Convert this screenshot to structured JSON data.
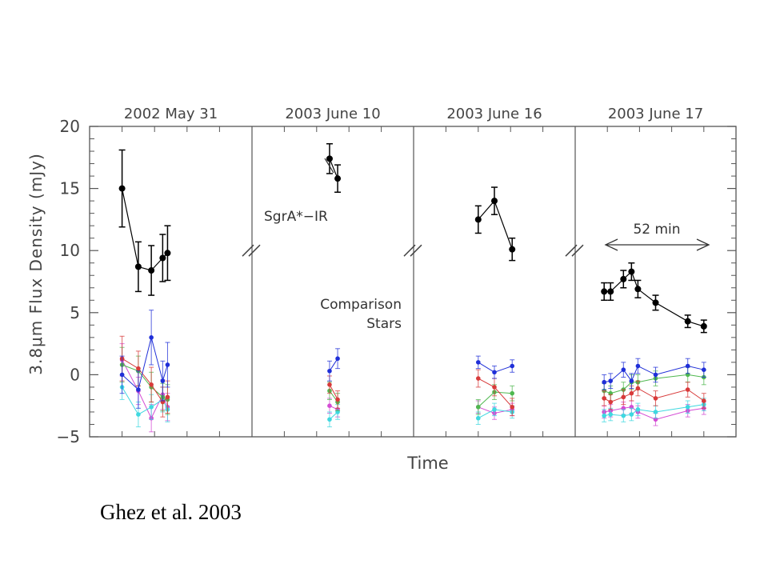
{
  "credit": "Ghez et al. 2003",
  "chart_data": {
    "type": "scatter",
    "title": "",
    "xlabel": "Time",
    "ylabel": "3.8μm Flux Density (mJy)",
    "ylim": [
      -5,
      20
    ],
    "yticks": [
      -5,
      0,
      5,
      10,
      15,
      20
    ],
    "grid": false,
    "legend": "none",
    "x_units": "epoch time index (arbitrary, linear within each panel)",
    "annotations": {
      "source": "SgrA*−IR",
      "comparison": [
        "Comparison",
        "Stars"
      ],
      "duration": "52 min"
    },
    "series_colors": {
      "SgrA": "#000000",
      "c1": "#1f2fd8",
      "c2": "#d83a3a",
      "c3": "#4fb84f",
      "c4": "#3fd8e0",
      "c5": "#d44bd4"
    },
    "panels": [
      {
        "label": "2002 May 31",
        "series": [
          {
            "key": "SgrA",
            "x": [
              2.0,
              3.0,
              3.8,
              4.5,
              4.8
            ],
            "y": [
              15.0,
              8.7,
              8.4,
              9.4,
              9.8
            ],
            "err": [
              3.1,
              2.0,
              2.0,
              1.9,
              2.2
            ]
          },
          {
            "key": "c1",
            "x": [
              2.0,
              3.0,
              3.8,
              4.5,
              4.8
            ],
            "y": [
              0.0,
              -1.2,
              3.0,
              -0.5,
              0.8
            ],
            "err": [
              1.5,
              1.5,
              2.2,
              1.6,
              1.8
            ]
          },
          {
            "key": "c2",
            "x": [
              2.0,
              3.0,
              3.8,
              4.5,
              4.8
            ],
            "y": [
              1.3,
              0.5,
              -0.8,
              -2.2,
              -1.8
            ],
            "err": [
              1.8,
              1.4,
              1.4,
              1.2,
              1.3
            ]
          },
          {
            "key": "c3",
            "x": [
              2.0,
              3.0,
              3.8,
              4.5,
              4.8
            ],
            "y": [
              0.8,
              0.3,
              -1.0,
              -1.8,
              -2.0
            ],
            "err": [
              1.4,
              1.2,
              1.2,
              1.1,
              1.2
            ]
          },
          {
            "key": "c4",
            "x": [
              2.0,
              3.0,
              3.8,
              4.5,
              4.8
            ],
            "y": [
              -1.0,
              -3.2,
              -2.6,
              -2.0,
              -2.8
            ],
            "err": [
              1.0,
              1.0,
              1.0,
              1.0,
              1.0
            ]
          },
          {
            "key": "c5",
            "x": [
              2.0,
              3.0,
              3.8,
              4.5,
              4.8
            ],
            "y": [
              1.2,
              -1.3,
              -3.5,
              -1.6,
              -2.6
            ],
            "err": [
              1.3,
              1.1,
              1.1,
              1.2,
              1.1
            ]
          }
        ]
      },
      {
        "label": "2003 June 10",
        "series": [
          {
            "key": "SgrA",
            "x": [
              4.8,
              5.3
            ],
            "y": [
              17.4,
              15.8
            ],
            "err": [
              1.2,
              1.1
            ]
          },
          {
            "key": "c1",
            "x": [
              4.8,
              5.3
            ],
            "y": [
              0.3,
              1.3
            ],
            "err": [
              0.8,
              0.8
            ]
          },
          {
            "key": "c2",
            "x": [
              4.8,
              5.3
            ],
            "y": [
              -0.8,
              -2.0
            ],
            "err": [
              0.7,
              0.7
            ]
          },
          {
            "key": "c3",
            "x": [
              4.8,
              5.3
            ],
            "y": [
              -1.3,
              -2.2
            ],
            "err": [
              0.7,
              0.7
            ]
          },
          {
            "key": "c4",
            "x": [
              4.8,
              5.3
            ],
            "y": [
              -3.6,
              -3.0
            ],
            "err": [
              0.6,
              0.6
            ]
          },
          {
            "key": "c5",
            "x": [
              4.8,
              5.3
            ],
            "y": [
              -2.5,
              -2.8
            ],
            "err": [
              0.6,
              0.6
            ]
          }
        ]
      },
      {
        "label": "2003 June 16",
        "series": [
          {
            "key": "SgrA",
            "x": [
              4.0,
              5.0,
              6.1
            ],
            "y": [
              12.5,
              14.0,
              10.1
            ],
            "err": [
              1.1,
              1.1,
              0.9
            ]
          },
          {
            "key": "c1",
            "x": [
              4.0,
              5.0,
              6.1
            ],
            "y": [
              1.0,
              0.2,
              0.7
            ],
            "err": [
              0.5,
              0.5,
              0.5
            ]
          },
          {
            "key": "c2",
            "x": [
              4.0,
              5.0,
              6.1
            ],
            "y": [
              -0.3,
              -1.0,
              -2.6
            ],
            "err": [
              0.7,
              0.7,
              0.7
            ]
          },
          {
            "key": "c3",
            "x": [
              4.0,
              5.0,
              6.1
            ],
            "y": [
              -2.6,
              -1.4,
              -1.5
            ],
            "err": [
              0.6,
              0.6,
              0.6
            ]
          },
          {
            "key": "c4",
            "x": [
              4.0,
              5.0,
              6.1
            ],
            "y": [
              -3.5,
              -2.8,
              -3.0
            ],
            "err": [
              0.5,
              0.5,
              0.5
            ]
          },
          {
            "key": "c5",
            "x": [
              4.0,
              5.0,
              6.1
            ],
            "y": [
              -2.6,
              -3.1,
              -2.8
            ],
            "err": [
              0.5,
              0.5,
              0.5
            ]
          }
        ]
      },
      {
        "label": "2003 June 17",
        "series": [
          {
            "key": "SgrA",
            "x": [
              1.8,
              2.2,
              3.0,
              3.5,
              3.9,
              5.0,
              7.0,
              8.0
            ],
            "y": [
              6.7,
              6.7,
              7.7,
              8.3,
              6.9,
              5.8,
              4.3,
              3.9
            ],
            "err": [
              0.7,
              0.7,
              0.7,
              0.7,
              0.7,
              0.6,
              0.5,
              0.5
            ]
          },
          {
            "key": "c1",
            "x": [
              1.8,
              2.2,
              3.0,
              3.5,
              3.9,
              5.0,
              7.0,
              8.0
            ],
            "y": [
              -0.6,
              -0.5,
              0.4,
              -0.5,
              0.7,
              0.0,
              0.7,
              0.4
            ],
            "err": [
              0.6,
              0.6,
              0.6,
              0.6,
              0.6,
              0.6,
              0.6,
              0.6
            ]
          },
          {
            "key": "c2",
            "x": [
              1.8,
              2.2,
              3.0,
              3.5,
              3.9,
              5.0,
              7.0,
              8.0
            ],
            "y": [
              -1.9,
              -2.2,
              -1.8,
              -1.5,
              -1.1,
              -1.9,
              -1.2,
              -2.1
            ],
            "err": [
              0.6,
              0.6,
              0.6,
              0.6,
              0.6,
              0.6,
              0.6,
              0.6
            ]
          },
          {
            "key": "c3",
            "x": [
              1.8,
              2.2,
              3.0,
              3.5,
              3.9,
              5.0,
              7.0,
              8.0
            ],
            "y": [
              -1.3,
              -1.5,
              -1.2,
              -0.6,
              -0.6,
              -0.3,
              0.0,
              -0.2
            ],
            "err": [
              0.6,
              0.6,
              0.6,
              0.6,
              0.6,
              0.6,
              0.6,
              0.6
            ]
          },
          {
            "key": "c4",
            "x": [
              1.8,
              2.2,
              3.0,
              3.5,
              3.9,
              5.0,
              7.0,
              8.0
            ],
            "y": [
              -3.3,
              -3.2,
              -3.3,
              -3.2,
              -2.8,
              -3.0,
              -2.6,
              -2.4
            ],
            "err": [
              0.5,
              0.5,
              0.5,
              0.5,
              0.5,
              0.5,
              0.5,
              0.5
            ]
          },
          {
            "key": "c5",
            "x": [
              1.8,
              2.2,
              3.0,
              3.5,
              3.9,
              5.0,
              7.0,
              8.0
            ],
            "y": [
              -3.0,
              -2.9,
              -2.7,
              -2.6,
              -3.0,
              -3.6,
              -2.9,
              -2.7
            ],
            "err": [
              0.5,
              0.5,
              0.5,
              0.5,
              0.5,
              0.5,
              0.5,
              0.5
            ]
          }
        ]
      }
    ]
  }
}
